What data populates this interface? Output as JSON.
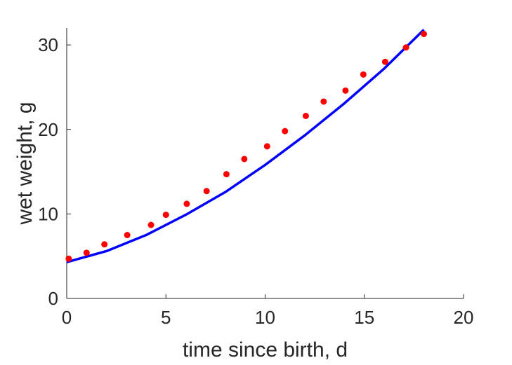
{
  "chart_data": {
    "type": "scatter",
    "title": "",
    "xlabel": "time since birth, d",
    "ylabel": "wet weight, g",
    "xlim": [
      0,
      20
    ],
    "ylim": [
      0,
      32
    ],
    "xticks": [
      0,
      5,
      10,
      15,
      20
    ],
    "yticks": [
      0,
      10,
      20,
      30
    ],
    "grid": false,
    "series": [
      {
        "kind": "points",
        "color": "#ff0000",
        "x": [
          0.1,
          1.0,
          1.9,
          3.05,
          4.25,
          5.0,
          6.05,
          7.05,
          8.05,
          8.95,
          10.1,
          11.0,
          12.05,
          12.95,
          14.05,
          14.95,
          16.05,
          17.1,
          18.0
        ],
        "y": [
          4.7,
          5.4,
          6.4,
          7.5,
          8.7,
          9.9,
          11.2,
          12.7,
          14.7,
          16.5,
          18.0,
          19.8,
          21.6,
          23.3,
          24.6,
          26.5,
          28.0,
          29.7,
          31.3
        ]
      },
      {
        "kind": "line",
        "color": "#0000ff",
        "x": [
          0,
          2,
          4,
          6,
          8,
          10,
          12,
          14,
          16,
          18
        ],
        "y": [
          4.3,
          5.6,
          7.5,
          9.9,
          12.6,
          15.8,
          19.3,
          23.1,
          27.2,
          31.8
        ]
      }
    ]
  }
}
